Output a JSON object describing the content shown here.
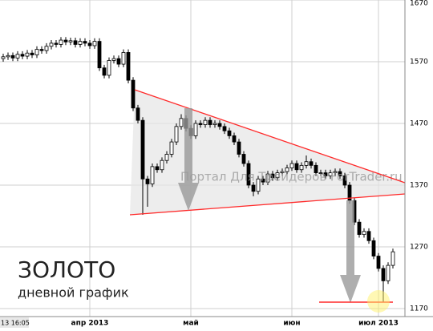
{
  "chart_data": {
    "type": "candlestick",
    "title": "ЗОЛОТО",
    "subtitle": "дневной график",
    "watermark": "Портал Для Трейдеров ForTrader.ru",
    "timestamp": "13 16:05",
    "categories": [
      null,
      null,
      null,
      null,
      null,
      null,
      null,
      null,
      null,
      null,
      null,
      null,
      null,
      null,
      null,
      null,
      null,
      null,
      "апр 2013",
      null,
      null,
      null,
      null,
      null,
      null,
      null,
      null,
      null,
      null,
      null,
      null,
      null,
      null,
      null,
      null,
      null,
      null,
      null,
      null,
      "май",
      null,
      null,
      null,
      null,
      null,
      null,
      null,
      null,
      null,
      null,
      null,
      null,
      null,
      null,
      null,
      null,
      null,
      null,
      null,
      null,
      "июн",
      null,
      null,
      null,
      null,
      null,
      null,
      null,
      null,
      null,
      null,
      null,
      null,
      null,
      null,
      null,
      null,
      null,
      "июл 2013",
      null,
      null,
      null
    ],
    "open": [
      1575,
      1578,
      1580,
      1576,
      1582,
      1579,
      1584,
      1581,
      1590,
      1588,
      1595,
      1600,
      1598,
      1605,
      1602,
      1604,
      1598,
      1603,
      1600,
      1596,
      1603,
      1560,
      1548,
      1572,
      1575,
      1566,
      1585,
      1540,
      1495,
      1475,
      1380,
      1372,
      1400,
      1395,
      1410,
      1420,
      1440,
      1465,
      1478,
      1462,
      1450,
      1470,
      1468,
      1475,
      1468,
      1470,
      1465,
      1458,
      1450,
      1440,
      1420,
      1405,
      1370,
      1360,
      1380,
      1375,
      1388,
      1382,
      1390,
      1392,
      1398,
      1405,
      1395,
      1402,
      1408,
      1402,
      1390,
      1390,
      1385,
      1390,
      1392,
      1385,
      1370,
      1345,
      1310,
      1290,
      1295,
      1280,
      1255,
      1235,
      1215,
      1240
    ],
    "high": [
      1583,
      1585,
      1585,
      1587,
      1587,
      1589,
      1589,
      1595,
      1595,
      1600,
      1605,
      1605,
      1610,
      1610,
      1609,
      1609,
      1608,
      1608,
      1605,
      1608,
      1608,
      1565,
      1577,
      1580,
      1580,
      1590,
      1590,
      1545,
      1500,
      1480,
      1385,
      1405,
      1405,
      1415,
      1425,
      1445,
      1470,
      1485,
      1483,
      1467,
      1475,
      1475,
      1480,
      1480,
      1475,
      1475,
      1470,
      1463,
      1455,
      1445,
      1425,
      1410,
      1375,
      1385,
      1385,
      1393,
      1393,
      1395,
      1397,
      1403,
      1410,
      1410,
      1407,
      1418,
      1413,
      1407,
      1395,
      1395,
      1395,
      1397,
      1397,
      1390,
      1375,
      1350,
      1315,
      1300,
      1300,
      1285,
      1260,
      1240,
      1245,
      1267
    ],
    "low": [
      1570,
      1573,
      1571,
      1571,
      1574,
      1574,
      1576,
      1576,
      1583,
      1583,
      1590,
      1593,
      1593,
      1597,
      1597,
      1593,
      1593,
      1595,
      1591,
      1591,
      1555,
      1543,
      1543,
      1567,
      1561,
      1561,
      1535,
      1490,
      1470,
      1322,
      1335,
      1367,
      1390,
      1390,
      1405,
      1415,
      1435,
      1460,
      1457,
      1445,
      1445,
      1463,
      1463,
      1463,
      1463,
      1460,
      1453,
      1445,
      1435,
      1415,
      1400,
      1365,
      1352,
      1355,
      1370,
      1370,
      1377,
      1377,
      1385,
      1387,
      1393,
      1390,
      1390,
      1397,
      1397,
      1385,
      1385,
      1380,
      1380,
      1385,
      1380,
      1365,
      1340,
      1305,
      1285,
      1285,
      1275,
      1250,
      1230,
      1180,
      1210,
      1235
    ],
    "close": [
      1578,
      1580,
      1576,
      1582,
      1579,
      1584,
      1581,
      1590,
      1588,
      1595,
      1600,
      1598,
      1605,
      1602,
      1604,
      1598,
      1603,
      1600,
      1596,
      1603,
      1560,
      1548,
      1572,
      1575,
      1566,
      1585,
      1540,
      1495,
      1475,
      1380,
      1372,
      1400,
      1395,
      1410,
      1420,
      1440,
      1465,
      1478,
      1462,
      1450,
      1470,
      1468,
      1475,
      1468,
      1470,
      1465,
      1458,
      1450,
      1440,
      1420,
      1405,
      1370,
      1360,
      1380,
      1375,
      1388,
      1382,
      1390,
      1392,
      1398,
      1405,
      1395,
      1402,
      1408,
      1402,
      1390,
      1390,
      1385,
      1390,
      1392,
      1385,
      1370,
      1345,
      1310,
      1290,
      1295,
      1280,
      1255,
      1235,
      1215,
      1240,
      1262
    ],
    "up_color": "#ffffff",
    "down_color": "#000000",
    "ylim": [
      1157,
      1670
    ],
    "yticks": [
      1170,
      1270,
      1370,
      1470,
      1570,
      1670
    ],
    "grid": true
  }
}
